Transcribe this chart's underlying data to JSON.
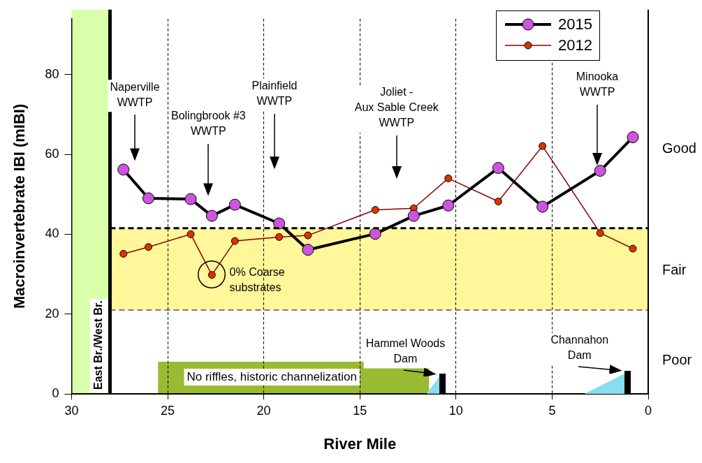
{
  "chart_data": {
    "type": "line",
    "xlabel": "River Mile",
    "ylabel": "Macroinvertebrate IBI (mIBI)",
    "x": [
      27.3,
      26.0,
      23.8,
      22.7,
      21.5,
      19.2,
      17.7,
      14.2,
      12.2,
      10.4,
      7.8,
      5.5,
      2.5,
      0.8
    ],
    "series": [
      {
        "name": "2015",
        "color": "#cc55dd",
        "values": [
          56.2,
          49.0,
          48.8,
          44.6,
          47.4,
          42.7,
          36.1,
          40.1,
          44.6,
          47.2,
          56.6,
          46.9,
          55.9,
          64.3
        ]
      },
      {
        "name": "2012",
        "color": "#dd3300",
        "values": [
          35.1,
          36.8,
          40.0,
          29.8,
          38.3,
          39.3,
          39.7,
          46.1,
          46.5,
          54.0,
          48.2,
          62.1,
          40.3,
          36.4
        ]
      }
    ],
    "xlim": [
      30,
      0
    ],
    "xticks": [
      30,
      25,
      20,
      15,
      10,
      5,
      0
    ],
    "ylim": [
      0,
      94
    ],
    "yticks": [
      0,
      20,
      40,
      60,
      80
    ],
    "grid": "x",
    "legend": "top right",
    "marker": "circle",
    "bands": [
      {
        "axis": "y",
        "from": 21,
        "to": 41.5,
        "color": "#fff799"
      },
      {
        "axis": "x",
        "from": 30,
        "to": 28.1,
        "color": "#d9ffaa"
      },
      {
        "axis": "x",
        "from": 25.5,
        "to": 11.4,
        "color": "#99bb33",
        "label": "No riffles, historic channelization"
      }
    ],
    "ref_lines": [
      {
        "axis": "x",
        "value": 28,
        "label": "East Br./West Br."
      },
      {
        "axis": "y",
        "value": 41.5,
        "line_style": "dashed"
      },
      {
        "axis": "y",
        "value": 21,
        "line_style": "dashed"
      }
    ],
    "annotations": [
      "Naperville\nWWTP",
      "Bolingbrook #3\nWWTP",
      "Plainfield\nWWTP",
      "Joliet -\nAux Sable Creek\nWWTP",
      "Minooka\nWWTP",
      "0% Coarse\nsubstrates",
      "Hammel Woods\nDam",
      "Channahon\nDam",
      "Good",
      "Fair",
      "Poor"
    ]
  }
}
